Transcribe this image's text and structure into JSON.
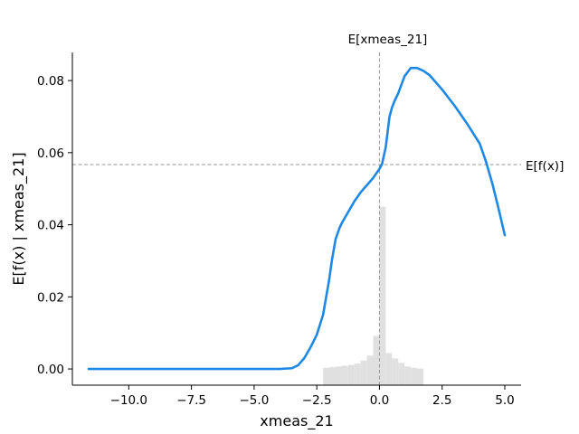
{
  "chart_data": {
    "type": "line",
    "xlabel": "xmeas_21",
    "ylabel": "E[f(x) | xmeas_21]",
    "xlim": [
      -12.25,
      5.65
    ],
    "ylim": [
      -0.0045,
      0.0878
    ],
    "x_ticks": [
      -10.0,
      -7.5,
      -5.0,
      -2.5,
      0.0,
      2.5,
      5.0
    ],
    "x_tick_labels": [
      "−10.0",
      "−7.5",
      "−5.0",
      "−2.5",
      "0.0",
      "2.5",
      "5.0"
    ],
    "y_ticks": [
      0.0,
      0.02,
      0.04,
      0.06,
      0.08
    ],
    "y_tick_labels": [
      "0.00",
      "0.02",
      "0.04",
      "0.06",
      "0.08"
    ],
    "grid": false,
    "series": [
      {
        "color": "#1e88e5",
        "x": [
          -11.6,
          -10.0,
          -7.5,
          -5.0,
          -4.0,
          -3.5,
          -3.25,
          -3.0,
          -2.75,
          -2.5,
          -2.25,
          -2.0,
          -1.9,
          -1.75,
          -1.6,
          -1.5,
          -1.25,
          -1.0,
          -0.75,
          -0.5,
          -0.25,
          0.0,
          0.1,
          0.25,
          0.4,
          0.5,
          0.6,
          0.75,
          1.0,
          1.25,
          1.5,
          1.75,
          2.0,
          2.5,
          3.0,
          3.5,
          4.0,
          4.25,
          4.5,
          4.75,
          5.0
        ],
        "y": [
          0.0,
          0.0,
          0.0,
          0.0,
          0.0,
          0.0002,
          0.001,
          0.003,
          0.006,
          0.0095,
          0.015,
          0.025,
          0.03,
          0.036,
          0.039,
          0.0405,
          0.0435,
          0.0465,
          0.049,
          0.051,
          0.053,
          0.0555,
          0.0568,
          0.0615,
          0.07,
          0.0725,
          0.0743,
          0.0765,
          0.0812,
          0.0835,
          0.0835,
          0.0827,
          0.0815,
          0.0775,
          0.073,
          0.068,
          0.0625,
          0.0575,
          0.0515,
          0.0445,
          0.0371
        ]
      }
    ],
    "histogram": {
      "color": "#e0e0e0",
      "bin_edges": [
        -2.25,
        -2.0,
        -1.75,
        -1.5,
        -1.25,
        -1.0,
        -0.75,
        -0.5,
        -0.25,
        0.0,
        0.25,
        0.5,
        0.75,
        1.0,
        1.25,
        1.5,
        1.75
      ],
      "heights": [
        0.0003,
        0.0005,
        0.0007,
        0.0009,
        0.0011,
        0.0015,
        0.0023,
        0.0037,
        0.0092,
        0.045,
        0.0044,
        0.0029,
        0.0017,
        0.0007,
        0.0003,
        0.0001
      ]
    },
    "annotations": [
      {
        "kind": "vline",
        "x": 0.0,
        "label": "E[xmeas_21]",
        "color": "#999999"
      },
      {
        "kind": "hline",
        "y": 0.0567,
        "label": "E[f(x)]",
        "color": "#999999"
      }
    ]
  }
}
